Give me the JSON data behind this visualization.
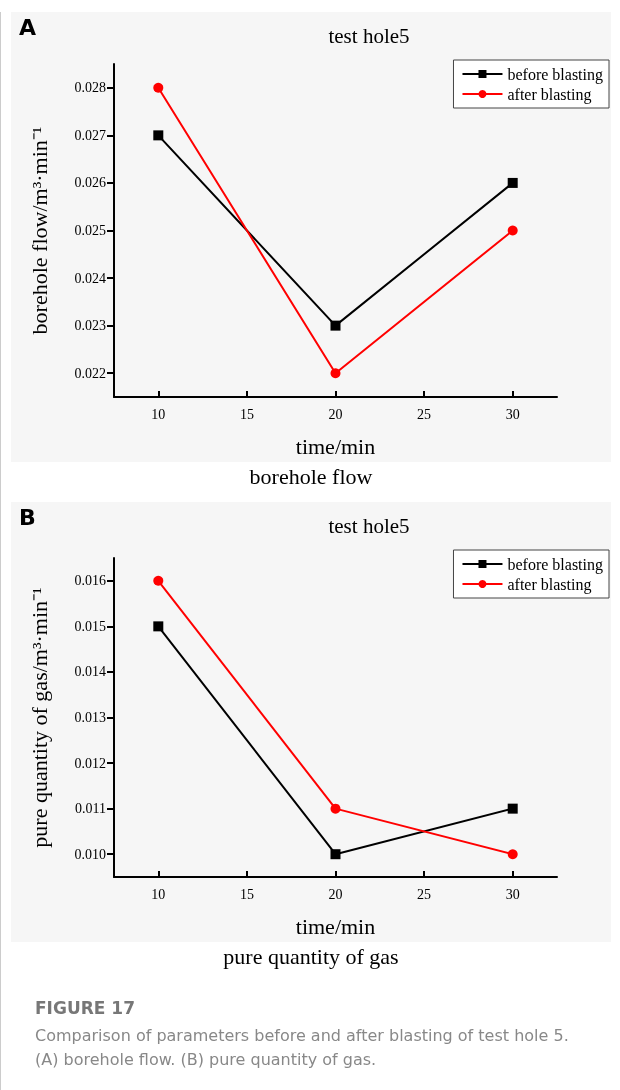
{
  "chart_data": [
    {
      "type": "line",
      "title": "test hole5",
      "xlabel": "time/min",
      "ylabel": "borehole flow/m³·min⁻¹",
      "x": [
        10,
        20,
        30
      ],
      "series": [
        {
          "name": "before blasting",
          "color": "#000000",
          "marker": "square",
          "values": [
            0.027,
            0.023,
            0.026
          ]
        },
        {
          "name": "after blasting",
          "color": "#ff0000",
          "marker": "circle",
          "values": [
            0.028,
            0.022,
            0.025
          ]
        }
      ],
      "xlim": [
        7.5,
        32.5
      ],
      "xticks": [
        10,
        15,
        20,
        25,
        30
      ],
      "ylim": [
        0.0215,
        0.0285
      ],
      "yticks": [
        0.022,
        0.023,
        0.024,
        0.025,
        0.026,
        0.027,
        0.028
      ],
      "legend": "top right",
      "grid": false,
      "line_style": "solid",
      "annotations": [
        "A",
        "borehole flow"
      ]
    },
    {
      "type": "line",
      "title": "test hole5",
      "xlabel": "time/min",
      "ylabel": "pure quantity of gas/m³·min⁻¹",
      "x": [
        10,
        20,
        30
      ],
      "series": [
        {
          "name": "before blasting",
          "color": "#000000",
          "marker": "square",
          "values": [
            0.015,
            0.01,
            0.011
          ]
        },
        {
          "name": "after blasting",
          "color": "#ff0000",
          "marker": "circle",
          "values": [
            0.016,
            0.011,
            0.01
          ]
        }
      ],
      "xlim": [
        7.5,
        32.5
      ],
      "xticks": [
        10,
        15,
        20,
        25,
        30
      ],
      "ylim": [
        0.0095,
        0.0165
      ],
      "yticks": [
        {
          "value": 0.01,
          "label": "0.010"
        },
        0.011,
        0.012,
        0.013,
        0.014,
        0.015,
        0.016
      ],
      "legend": "top right",
      "grid": false,
      "line_style": "solid",
      "annotations": [
        "B",
        "pure quantity of gas",
        "FIGURE 17",
        "Comparison of parameters before and after blasting of test hole 5. (A) borehole flow. (B) pure quantity of gas."
      ]
    }
  ]
}
